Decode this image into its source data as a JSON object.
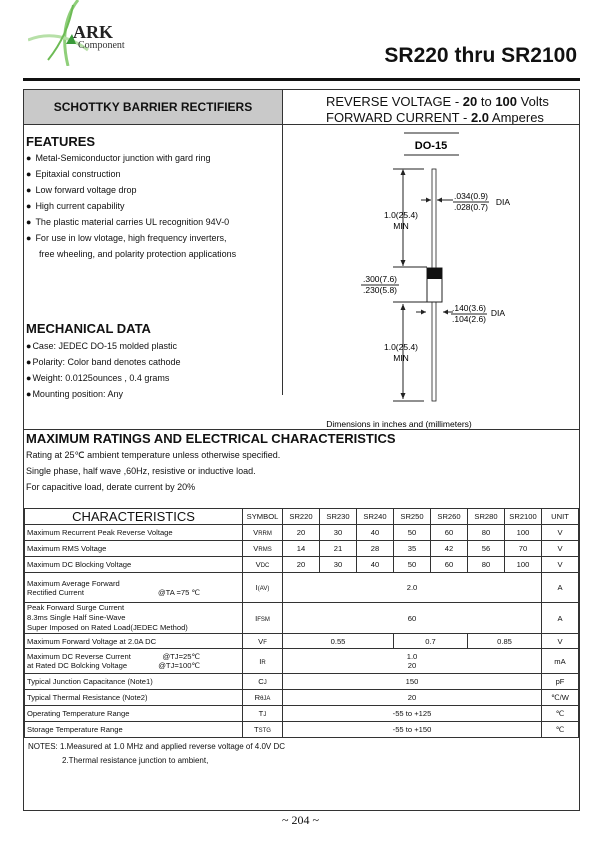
{
  "logo": {
    "brand": "ARK",
    "sub": "Component",
    "color": "#6dbb55"
  },
  "title": "SR220 thru SR2100",
  "header": {
    "category": "SCHOTTKY BARRIER  RECTIFIERS",
    "rv_label": "REVERSE VOLTAGE  - ",
    "rv_min": "20",
    "rv_to": " to ",
    "rv_max": "100",
    "rv_unit": " Volts",
    "fc_label": "FORWARD CURRENT - ",
    "fc_val": "2.0",
    "fc_unit": " Amperes"
  },
  "features": {
    "title": "FEATURES",
    "items": [
      "Metal-Semiconductor junction with gard ring",
      "Epitaxial construction",
      "Low forward voltage drop",
      "High current capability",
      "The plastic material carries UL recognition 94V-0",
      "For use in low vlotage, high frequency inverters,"
    ],
    "cont": "free wheeling, and polarity protection applications"
  },
  "mechanical": {
    "title": "MECHANICAL DATA",
    "items": [
      "Case: JEDEC DO-15 molded plastic",
      "Polarity:  Color band denotes cathode",
      "Weight:  0.0125ounces , 0.4 grams",
      "Mounting position: Any"
    ]
  },
  "diagram": {
    "package": "DO-15",
    "lead_len": "1.0(25.4)",
    "min": "MIN",
    "lead_dia_max": ".034(0.9)",
    "lead_dia_min": ".028(0.7)",
    "dia": "DIA",
    "body_len_max": ".300(7.6)",
    "body_len_min": ".230(5.8)",
    "body_dia_max": ".140(3.6)",
    "body_dia_min": ".104(2.6)",
    "caption": "Dimensions in inches and (millimeters)"
  },
  "ratings": {
    "title": "MAXIMUM RATINGS AND ELECTRICAL CHARACTERISTICS",
    "lines": [
      "Rating at 25℃ ambient temperature unless otherwise specified.",
      "Single phase, half wave ,60Hz, resistive or inductive load.",
      "For capacitive load, derate current by 20%"
    ]
  },
  "table": {
    "headers": [
      "CHARACTERISTICS",
      "SYMBOL",
      "SR220",
      "SR230",
      "SR240",
      "SR250",
      "SR260",
      "SR280",
      "SR2100",
      "UNIT"
    ],
    "vrrm": {
      "label": "Maximum Recurrent Peak Reverse Voltage",
      "sym": "V",
      "sub": "RRM",
      "vals": [
        "20",
        "30",
        "40",
        "50",
        "60",
        "80",
        "100"
      ],
      "unit": "V"
    },
    "vrms": {
      "label": "Maximum RMS Voltage",
      "sym": "V",
      "sub": "RMS",
      "vals": [
        "14",
        "21",
        "28",
        "35",
        "42",
        "56",
        "70"
      ],
      "unit": "V"
    },
    "vdc": {
      "label": "Maximum DC Blocking Voltage",
      "sym": "V",
      "sub": "DC",
      "vals": [
        "20",
        "30",
        "40",
        "50",
        "60",
        "80",
        "100"
      ],
      "unit": "V"
    },
    "iav": {
      "label1": "Maximum Average Forward",
      "label2": "Rectified Current",
      "cond": "@TA =75 ℃",
      "sym": "I",
      "sub": "(AV)",
      "val": "2.0",
      "unit": "A"
    },
    "ifsm": {
      "label1": "Peak Forward Surge Current",
      "label2": "8.3ms Single Half Sine-Wave",
      "label3": "Super Imposed on Rated Load(JEDEC Method)",
      "sym": "I",
      "sub": "FSM",
      "val": "60",
      "unit": "A"
    },
    "vf": {
      "label": "Maximum Forward Voltage at 2.0A DC",
      "sym": "V",
      "sub": "F",
      "vals": [
        "0.55",
        "0.7",
        "0.85"
      ],
      "unit": "V"
    },
    "ir": {
      "label1": "Maximum DC Reverse Current",
      "cond1": "@TJ=25℃",
      "label2": "at Rated DC Bolcking Voltage",
      "cond2": "@TJ=100℃",
      "sym": "I",
      "sub": "R",
      "val1": "1.0",
      "val2": "20",
      "unit": "mA"
    },
    "cj": {
      "label": "Typical Junction  Capacitance (Note1)",
      "sym": "C",
      "sub": "J",
      "val": "150",
      "unit": "pF"
    },
    "rth": {
      "label": "Typical Thermal Resistance (Note2)",
      "sym": "R",
      "sub": "θJA",
      "val": "20",
      "unit": "℃/W"
    },
    "tj": {
      "label": "Operating Temperature Range",
      "sym": "T",
      "sub": "J",
      "val": "-55 to +125",
      "unit": "℃"
    },
    "tstg": {
      "label": "Storage Temperature Range",
      "sym": "T",
      "sub": "STG",
      "val": "-55 to +150",
      "unit": "℃"
    }
  },
  "notes": {
    "n1": "NOTES:   1.Measured at 1.0 MHz and applied reverse voltage of 4.0V DC",
    "n2": "2.Thermal resistance junction to ambient,"
  },
  "page": "~ 204 ~"
}
